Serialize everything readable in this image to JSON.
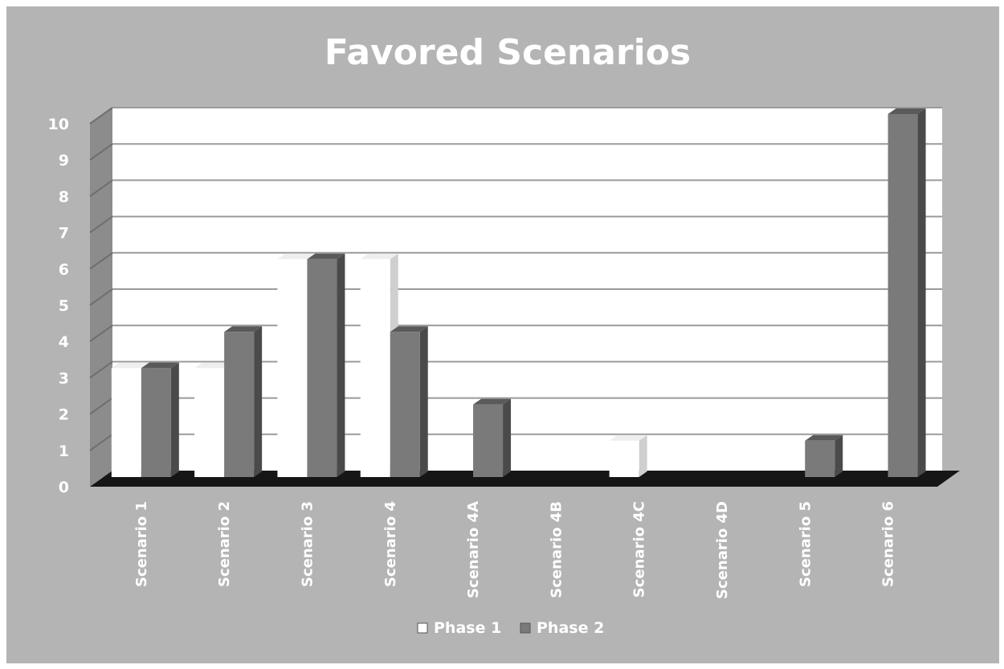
{
  "chart_data": {
    "type": "bar",
    "title": "Favored Scenarios",
    "categories": [
      "Scenario 1",
      "Scenario 2",
      "Scenario 3",
      "Scenario 4",
      "Scenario 4A",
      "Scenario 4B",
      "Scenario 4C",
      "Scenario 4D",
      "Scenario 5",
      "Scenario 6"
    ],
    "series": [
      {
        "name": "Phase 1",
        "values": [
          3,
          3,
          6,
          6,
          0,
          0,
          1,
          0,
          0,
          0
        ],
        "color": "#ffffff"
      },
      {
        "name": "Phase 2",
        "values": [
          3,
          4,
          6,
          4,
          2,
          0,
          0,
          0,
          1,
          10
        ],
        "color": "#7a7a7a"
      }
    ],
    "ylim": [
      0,
      10
    ],
    "yticks": [
      0,
      1,
      2,
      3,
      4,
      5,
      6,
      7,
      8,
      9,
      10
    ],
    "grid": true,
    "legend_position": "bottom"
  }
}
